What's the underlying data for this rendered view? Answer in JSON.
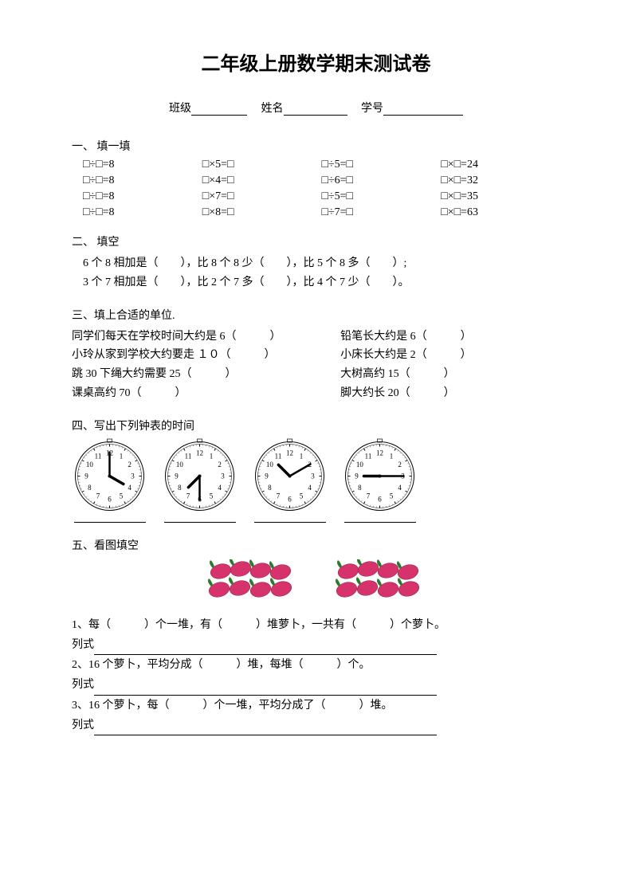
{
  "title": "二年级上册数学期末测试卷",
  "header": {
    "class_label": "班级",
    "name_label": "姓名",
    "id_label": "学号"
  },
  "section1": {
    "title": "一、 填一填",
    "rows": [
      [
        "□÷□=8",
        "□×5=□",
        "□÷5=□",
        "□×□=24"
      ],
      [
        "□÷□=8",
        "□×4=□",
        "□÷6=□",
        "□×□=32"
      ],
      [
        "□÷□=8",
        "□×7=□",
        "□÷5=□",
        "□×□=35"
      ],
      [
        "□÷□=8",
        "□×8=□",
        "□÷7=□",
        "□×□=63"
      ]
    ]
  },
  "section2": {
    "title": "二、 填空",
    "lines": [
      "6 个 8 相加是（　　），比 8 个 8 少（　　），比 5 个 8 多（　　）;",
      "3 个 7 相加是（　　），比 2 个 7 多（　　），比 4 个 7 少（　　）。"
    ]
  },
  "section3": {
    "title": "三、填上合适的单位.",
    "rows": [
      {
        "left": "同学们每天在学校时间大约是 6（　　　）",
        "right": "铅笔长大约是 6（　　　）"
      },
      {
        "left": "小玲从家到学校大约要走 １０（　　　）",
        "right": "小床长大约是 2（　　　）"
      },
      {
        "left": "跳 30 下绳大约需要 25（　　　）",
        "right": "大树高约 15（　　　）"
      },
      {
        "left": "课桌高约 70（　　　）",
        "right": "脚大约长 20（　　　）"
      }
    ]
  },
  "section4": {
    "title": "四、写出下列钟表的时间",
    "clocks": [
      {
        "hour_angle": 120,
        "minute_angle": 0
      },
      {
        "hour_angle": 225,
        "minute_angle": 180
      },
      {
        "hour_angle": -45,
        "minute_angle": 60
      },
      {
        "hour_angle": -90,
        "minute_angle": 90
      }
    ]
  },
  "section5": {
    "title": "五、看图填空",
    "lines": [
      "1、每（　　　）个一堆，有（　　　）堆萝卜，一共有（　　　）个萝卜。",
      "2、16 个萝卜，平均分成（　　　）堆，每堆（　　　）个。",
      "3、16 个萝卜，每（　　　）个一堆，平均分成了（　　　）堆。"
    ],
    "formula_label": "列式",
    "radish_color": "#d6336c",
    "leaf_color": "#2d7a2d"
  }
}
